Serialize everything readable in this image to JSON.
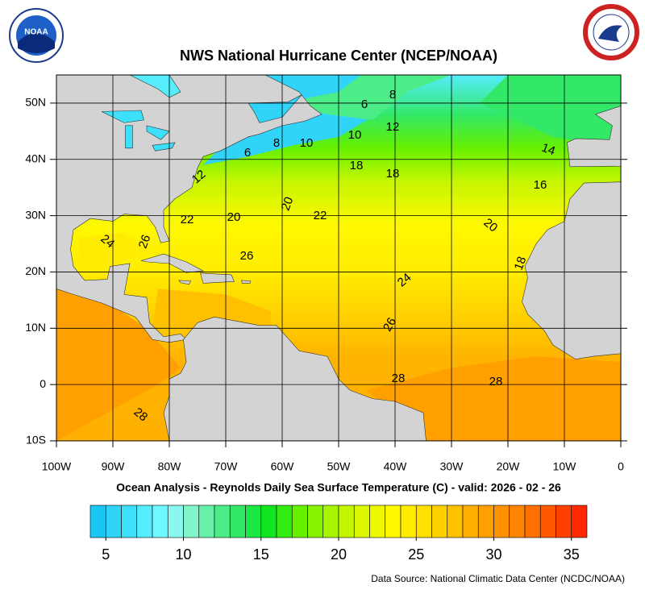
{
  "map": {
    "title": "NWS National Hurricane Center (NCEP/NOAA)",
    "subtitle": "Ocean Analysis - Reynolds Daily Sea Surface Temperature (C) - valid: 2026 - 02 - 26",
    "source": "Data Source: National Climatic Data Center (NCDC/NOAA)",
    "logo_text": "NOAA",
    "xlim": [
      -100,
      0
    ],
    "ylim": [
      -10,
      55
    ],
    "xticks": [
      {
        "value": -100,
        "label": "100W"
      },
      {
        "value": -90,
        "label": "90W"
      },
      {
        "value": -80,
        "label": "80W"
      },
      {
        "value": -70,
        "label": "70W"
      },
      {
        "value": -60,
        "label": "60W"
      },
      {
        "value": -50,
        "label": "50W"
      },
      {
        "value": -40,
        "label": "40W"
      },
      {
        "value": -30,
        "label": "30W"
      },
      {
        "value": -20,
        "label": "20W"
      },
      {
        "value": -10,
        "label": "10W"
      },
      0
    ],
    "yticks": [
      {
        "value": -10,
        "label": "10S"
      },
      0,
      {
        "value": 10,
        "label": "10N"
      },
      {
        "value": 20,
        "label": "20N"
      },
      {
        "value": 30,
        "label": "30N"
      },
      {
        "value": 40,
        "label": "40N"
      },
      {
        "value": 50,
        "label": "50N"
      }
    ],
    "grid": true,
    "contour_labels": [
      8,
      6,
      12,
      10,
      10,
      8,
      6,
      14,
      18,
      18,
      16,
      12,
      20,
      22,
      20,
      22,
      20,
      24,
      26,
      26,
      18,
      24,
      26,
      28,
      28,
      28
    ],
    "colorbar": {
      "range": [
        4,
        36
      ],
      "ticks": [
        5,
        10,
        15,
        20,
        25,
        30,
        35
      ],
      "colors": [
        "#19c7f5",
        "#2fd4f8",
        "#3ce0fa",
        "#55ecfc",
        "#6ff8ff",
        "#8af8f0",
        "#7ff5c8",
        "#66f0a8",
        "#4ced88",
        "#33e866",
        "#1ae844",
        "#10e61e",
        "#33ec10",
        "#66f000",
        "#88f200",
        "#a6f400",
        "#c4f600",
        "#dcf800",
        "#eef800",
        "#fff800",
        "#ffec00",
        "#ffe000",
        "#ffd000",
        "#ffc000",
        "#ffb000",
        "#ffa000",
        "#ff9200",
        "#ff8400",
        "#ff7000",
        "#ff5800",
        "#ff4000",
        "#ff2800"
      ]
    }
  }
}
